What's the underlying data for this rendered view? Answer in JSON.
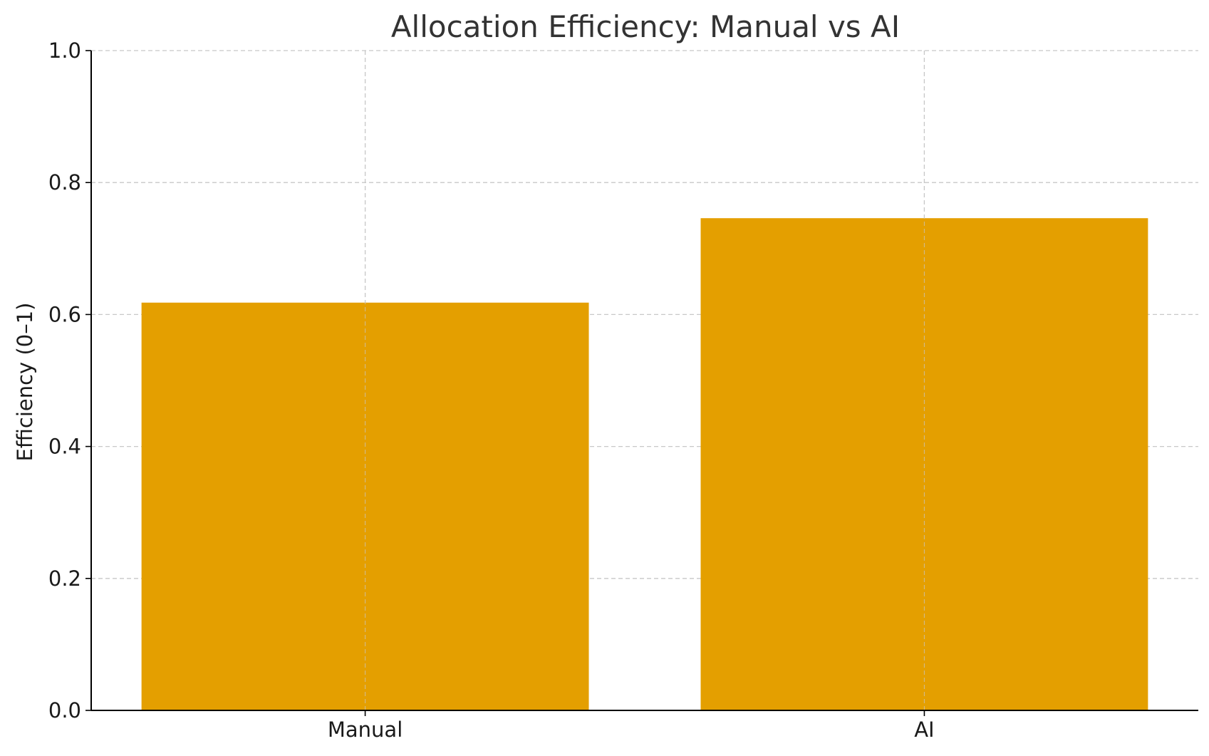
{
  "chart_data": {
    "type": "bar",
    "title": "Allocation Efficiency: Manual vs AI",
    "xlabel": "",
    "ylabel": "Efficiency (0–1)",
    "categories": [
      "Manual",
      "AI"
    ],
    "values": [
      0.618,
      0.746
    ],
    "ylim": [
      0,
      1.0
    ],
    "yticks": [
      0.0,
      0.2,
      0.4,
      0.6,
      0.8,
      1.0
    ],
    "ytick_labels": [
      "0.0",
      "0.2",
      "0.4",
      "0.6",
      "0.8",
      "1.0"
    ],
    "grid": true,
    "legend": "none",
    "colors": {
      "bar": "#e49f00",
      "grid": "#c8c8c8",
      "axis": "#000000",
      "text": "#333333",
      "tick_text": "#1a1a1a"
    }
  }
}
